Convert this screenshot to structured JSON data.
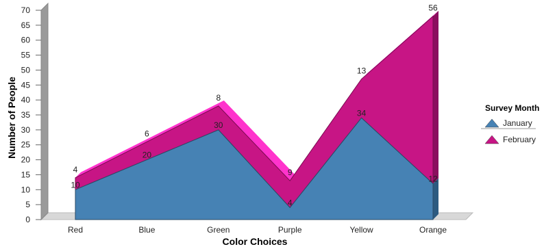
{
  "chart_data": {
    "type": "area",
    "stacked": true,
    "categories": [
      "Red",
      "Blue",
      "Green",
      "Purple",
      "Yellow",
      "Orange"
    ],
    "series": [
      {
        "name": "January",
        "values": [
          10,
          20,
          30,
          4,
          34,
          12
        ],
        "color": "#4682b4"
      },
      {
        "name": "February",
        "values": [
          4,
          6,
          8,
          9,
          13,
          56
        ],
        "color": "#c71585"
      }
    ],
    "xlabel": "Color Choices",
    "ylabel": "Number of People",
    "ylim": [
      0,
      70
    ],
    "yticks": [
      0,
      5,
      10,
      15,
      20,
      25,
      30,
      35,
      40,
      45,
      50,
      55,
      60,
      65,
      70
    ],
    "legend": {
      "title": "Survey Month",
      "position": "right"
    },
    "grid": false,
    "style": "3d"
  }
}
